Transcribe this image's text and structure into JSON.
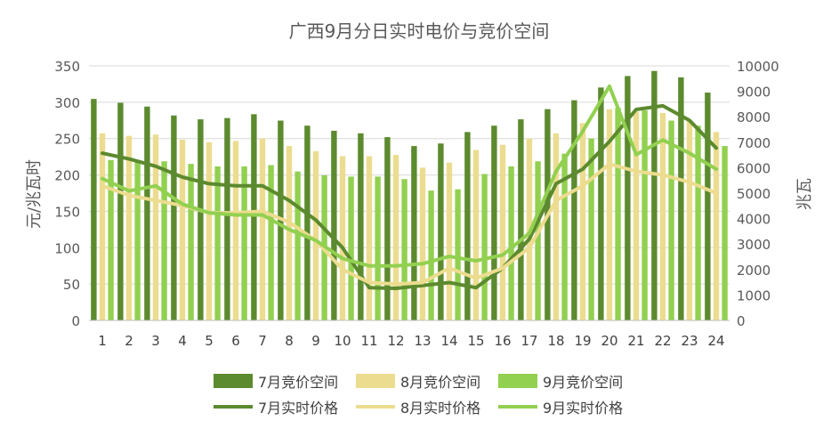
{
  "chart_data": {
    "type": "bar",
    "title": "广西9月分日实时电价与竞价空间",
    "ylabel_left": "元/兆瓦时",
    "ylabel_right": "兆瓦",
    "categories": [
      "1",
      "2",
      "3",
      "4",
      "5",
      "6",
      "7",
      "8",
      "9",
      "10",
      "11",
      "12",
      "13",
      "14",
      "15",
      "16",
      "17",
      "18",
      "19",
      "20",
      "21",
      "22",
      "23",
      "24"
    ],
    "ylim_left": [
      0,
      350
    ],
    "ylim_right": [
      0,
      10000
    ],
    "yticks_left": [
      "0",
      "50",
      "100",
      "150",
      "200",
      "250",
      "300",
      "350"
    ],
    "yticks_right": [
      "0",
      "1000",
      "2000",
      "3000",
      "4000",
      "5000",
      "6000",
      "7000",
      "8000",
      "9000",
      "10000"
    ],
    "grid": true,
    "legend_position": "bottom",
    "bar_series": [
      {
        "name": "7月竞价空间",
        "color": "#5c8a2e",
        "axis": "right",
        "values": [
          8700,
          8550,
          8400,
          8050,
          7900,
          7950,
          8100,
          7850,
          7650,
          7450,
          7350,
          7200,
          6850,
          6950,
          7400,
          7650,
          7900,
          8300,
          8650,
          9150,
          9600,
          9800,
          9550,
          8950
        ]
      },
      {
        "name": "8月竞价空间",
        "color": "#ecdc8f",
        "axis": "right",
        "values": [
          7350,
          7250,
          7300,
          7100,
          7000,
          7050,
          7150,
          6850,
          6650,
          6450,
          6450,
          6500,
          6000,
          6200,
          6700,
          6900,
          7150,
          7350,
          7750,
          8300,
          8200,
          8150,
          7850,
          7400
        ]
      },
      {
        "name": "9月竞价空间",
        "color": "#92d050",
        "axis": "right",
        "values": [
          6300,
          6300,
          6250,
          6150,
          6050,
          6050,
          6100,
          5850,
          5700,
          5650,
          5650,
          5550,
          5100,
          5150,
          5750,
          6050,
          6250,
          6550,
          7150,
          8350,
          8250,
          7850,
          7650,
          6850
        ]
      }
    ],
    "line_series": [
      {
        "name": "7月实时价格",
        "color": "#5c8a2e",
        "axis": "left",
        "values": [
          230,
          222,
          212,
          197,
          188,
          185,
          185,
          165,
          138,
          100,
          45,
          44,
          48,
          52,
          45,
          72,
          112,
          188,
          208,
          246,
          290,
          295,
          275,
          237
        ]
      },
      {
        "name": "8月实时价格",
        "color": "#ecdc8f",
        "axis": "left",
        "values": [
          185,
          172,
          165,
          158,
          148,
          148,
          150,
          135,
          110,
          70,
          52,
          50,
          52,
          72,
          58,
          72,
          100,
          165,
          185,
          215,
          205,
          200,
          190,
          175
        ]
      },
      {
        "name": "9月实时价格",
        "color": "#92d050",
        "axis": "left",
        "values": [
          195,
          178,
          185,
          160,
          148,
          145,
          145,
          125,
          110,
          85,
          75,
          75,
          78,
          88,
          82,
          90,
          120,
          205,
          260,
          322,
          228,
          248,
          230,
          208
        ]
      }
    ]
  }
}
